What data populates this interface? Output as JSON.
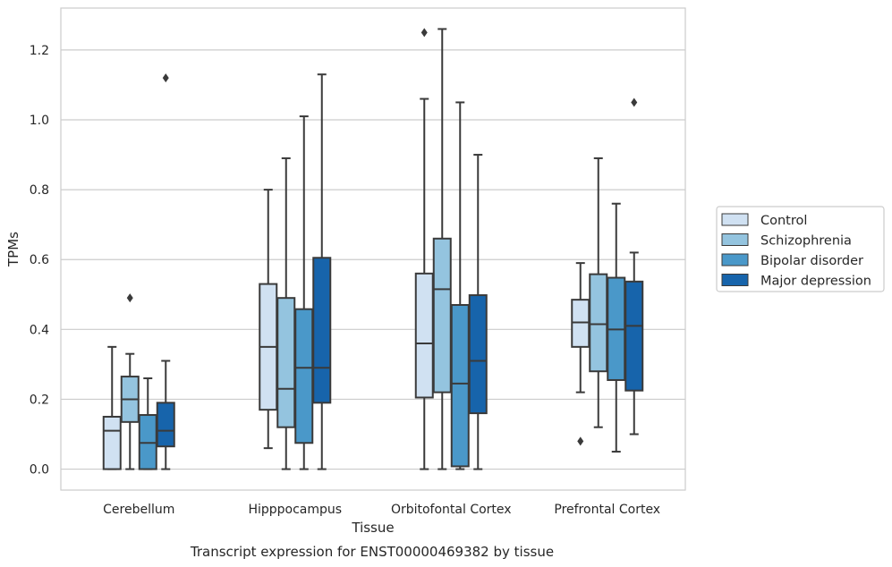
{
  "chart_data": {
    "type": "box",
    "title": "",
    "xlabel": "Tissue",
    "ylabel": "TPMs",
    "caption": "Transcript expression for ENST00000469382 by tissue",
    "ylim": [
      -0.06,
      1.32
    ],
    "yticks": [
      0.0,
      0.2,
      0.4,
      0.6,
      0.8,
      1.0,
      1.2
    ],
    "ytick_labels": [
      "0.0",
      "0.2",
      "0.4",
      "0.6",
      "0.8",
      "1.0",
      "1.2"
    ],
    "grid": "horizontal",
    "legend_position": "right",
    "categories": [
      "Cerebellum",
      "Hipppocampus",
      "Orbitofontal Cortex",
      "Prefrontal Cortex"
    ],
    "series": [
      {
        "name": "Control",
        "color": "#d0e1f2",
        "boxes": [
          {
            "whislo": 0.0,
            "q1": 0.0,
            "med": 0.11,
            "q3": 0.15,
            "whishi": 0.35,
            "fliers": []
          },
          {
            "whislo": 0.06,
            "q1": 0.17,
            "med": 0.35,
            "q3": 0.53,
            "whishi": 0.8,
            "fliers": []
          },
          {
            "whislo": 0.0,
            "q1": 0.205,
            "med": 0.36,
            "q3": 0.56,
            "whishi": 1.06,
            "fliers": [
              1.25
            ]
          },
          {
            "whislo": 0.22,
            "q1": 0.35,
            "med": 0.42,
            "q3": 0.485,
            "whishi": 0.59,
            "fliers": [
              0.08
            ]
          }
        ]
      },
      {
        "name": "Schizophrenia",
        "color": "#94c4df",
        "boxes": [
          {
            "whislo": 0.0,
            "q1": 0.135,
            "med": 0.2,
            "q3": 0.265,
            "whishi": 0.33,
            "fliers": [
              0.49
            ]
          },
          {
            "whislo": 0.0,
            "q1": 0.12,
            "med": 0.23,
            "q3": 0.49,
            "whishi": 0.89,
            "fliers": []
          },
          {
            "whislo": 0.0,
            "q1": 0.22,
            "med": 0.515,
            "q3": 0.66,
            "whishi": 1.26,
            "fliers": []
          },
          {
            "whislo": 0.12,
            "q1": 0.28,
            "med": 0.415,
            "q3": 0.558,
            "whishi": 0.89,
            "fliers": []
          }
        ]
      },
      {
        "name": "Bipolar disorder",
        "color": "#4a98c9",
        "boxes": [
          {
            "whislo": 0.0,
            "q1": 0.0,
            "med": 0.075,
            "q3": 0.155,
            "whishi": 0.26,
            "fliers": []
          },
          {
            "whislo": 0.0,
            "q1": 0.075,
            "med": 0.29,
            "q3": 0.458,
            "whishi": 1.01,
            "fliers": []
          },
          {
            "whislo": 0.0,
            "q1": 0.008,
            "med": 0.245,
            "q3": 0.47,
            "whishi": 1.05,
            "fliers": []
          },
          {
            "whislo": 0.05,
            "q1": 0.255,
            "med": 0.4,
            "q3": 0.548,
            "whishi": 0.76,
            "fliers": []
          }
        ]
      },
      {
        "name": "Major depression",
        "color": "#1764ab",
        "boxes": [
          {
            "whislo": 0.0,
            "q1": 0.065,
            "med": 0.11,
            "q3": 0.19,
            "whishi": 0.31,
            "fliers": [
              1.12
            ]
          },
          {
            "whislo": 0.0,
            "q1": 0.19,
            "med": 0.29,
            "q3": 0.605,
            "whishi": 1.13,
            "fliers": []
          },
          {
            "whislo": 0.0,
            "q1": 0.16,
            "med": 0.31,
            "q3": 0.498,
            "whishi": 0.9,
            "fliers": []
          },
          {
            "whislo": 0.1,
            "q1": 0.225,
            "med": 0.41,
            "q3": 0.537,
            "whishi": 0.62,
            "fliers": [
              1.05
            ]
          }
        ]
      }
    ]
  }
}
